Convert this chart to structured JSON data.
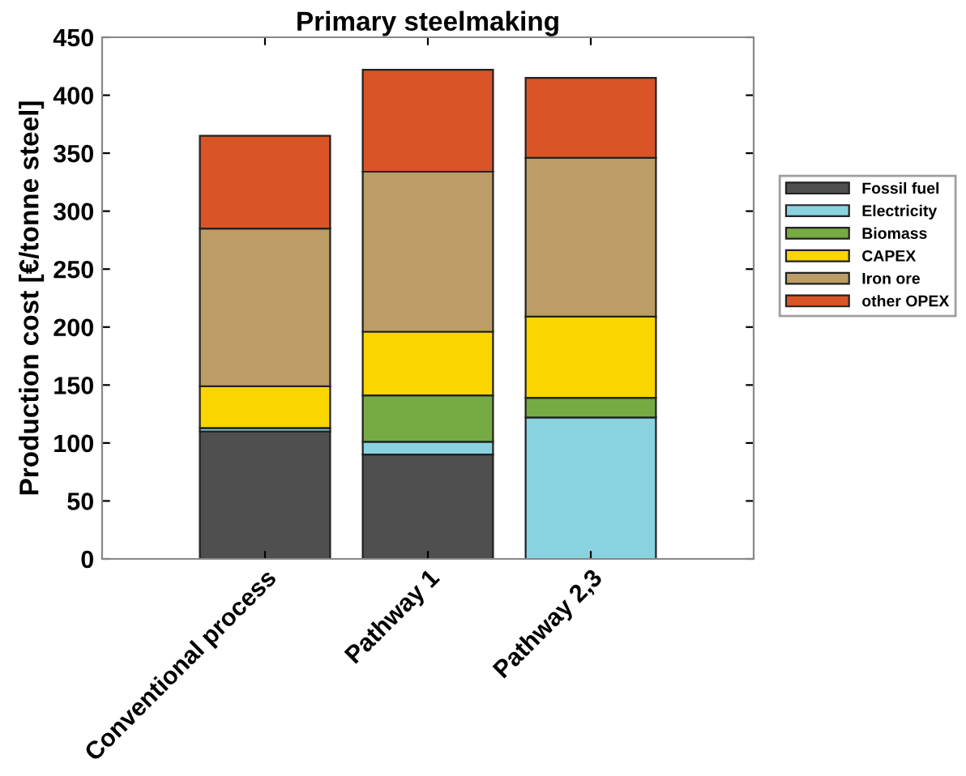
{
  "chart_data": {
    "type": "bar",
    "stacked": true,
    "title": "Primary steelmaking",
    "ylabel": "Production cost [€/tonne steel]",
    "categories": [
      "Conventional process",
      "Pathway 1",
      "Pathway 2,3"
    ],
    "series": [
      {
        "name": "Fossil fuel",
        "color": "#4f4f4f",
        "values": [
          110,
          90,
          0
        ]
      },
      {
        "name": "Electricity",
        "color": "#89d3e0",
        "values": [
          3,
          11,
          122
        ]
      },
      {
        "name": "Biomass",
        "color": "#76ab43",
        "values": [
          0,
          40,
          17
        ]
      },
      {
        "name": "CAPEX",
        "color": "#fad500",
        "values": [
          36,
          55,
          70
        ]
      },
      {
        "name": "Iron ore",
        "color": "#bc9d67",
        "values": [
          136,
          138,
          137
        ]
      },
      {
        "name": "other OPEX",
        "color": "#d95427",
        "values": [
          80,
          88,
          69
        ]
      }
    ],
    "ylim": [
      0,
      450
    ],
    "yticks": [
      0,
      50,
      100,
      150,
      200,
      250,
      300,
      350,
      400,
      450
    ],
    "grid": false,
    "legend": "right"
  }
}
